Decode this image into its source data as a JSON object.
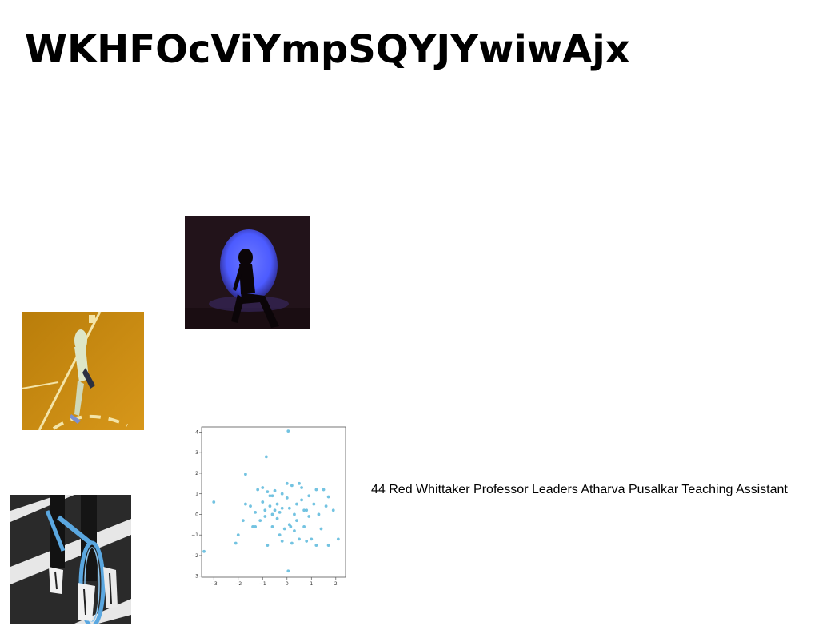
{
  "title": "WKHFOcViYmpSQYJYwiwAjx",
  "caption": "44 Red Whittaker Professor Leaders Atharva Pusalkar Teaching Assistant",
  "images": [
    {
      "name": "silhouette-spotlight-photo",
      "colors": {
        "background": "#22131a",
        "spot": "#4c5bff",
        "figure": "#0b0508"
      }
    },
    {
      "name": "runner-court-photo",
      "colors": {
        "floor": "#c88a10",
        "line": "#f3e4a8",
        "figure": "#dde6c8"
      }
    },
    {
      "name": "bicycle-crosswalk-photo",
      "colors": {
        "road": "#2a2a2a",
        "stripe": "#e7e7e7",
        "bike": "#5aa7e0"
      }
    }
  ],
  "chart_data": {
    "type": "scatter",
    "xlim": [
      -3.5,
      2.4
    ],
    "ylim": [
      -3.05,
      4.25
    ],
    "xticks": [
      "−3",
      "−2",
      "−1",
      "0",
      "1",
      "2"
    ],
    "yticks": [
      "−3",
      "−2",
      "−1",
      "0",
      "1",
      "2",
      "3",
      "4"
    ],
    "grid": false,
    "point_color": "#5ab8dc",
    "points": [
      [
        0.05,
        4.05
      ],
      [
        -0.85,
        2.8
      ],
      [
        -1.7,
        1.95
      ],
      [
        -3.0,
        0.6
      ],
      [
        -3.4,
        -1.8
      ],
      [
        -2.1,
        -1.4
      ],
      [
        -2.0,
        -1.0
      ],
      [
        -1.8,
        -0.3
      ],
      [
        -1.7,
        0.5
      ],
      [
        -1.5,
        0.4
      ],
      [
        -1.4,
        -0.6
      ],
      [
        -1.3,
        0.1
      ],
      [
        -1.2,
        1.2
      ],
      [
        -1.1,
        -0.3
      ],
      [
        -1.0,
        0.6
      ],
      [
        -1.0,
        1.3
      ],
      [
        -0.9,
        0.2
      ],
      [
        -0.9,
        -0.1
      ],
      [
        -0.8,
        1.1
      ],
      [
        -0.8,
        -1.5
      ],
      [
        -0.7,
        0.4
      ],
      [
        -0.7,
        0.9
      ],
      [
        -0.6,
        -0.6
      ],
      [
        -0.6,
        0.0
      ],
      [
        -0.5,
        0.2
      ],
      [
        -0.5,
        1.15
      ],
      [
        -0.4,
        -0.2
      ],
      [
        -0.4,
        0.5
      ],
      [
        -0.3,
        0.1
      ],
      [
        -0.3,
        -1.0
      ],
      [
        -0.2,
        -1.3
      ],
      [
        -0.2,
        1.0
      ],
      [
        -0.1,
        -0.7
      ],
      [
        0.0,
        1.5
      ],
      [
        0.0,
        0.8
      ],
      [
        0.05,
        -2.75
      ],
      [
        0.1,
        -0.5
      ],
      [
        0.1,
        0.3
      ],
      [
        0.2,
        -1.4
      ],
      [
        0.2,
        1.4
      ],
      [
        0.3,
        -0.8
      ],
      [
        0.3,
        0.0
      ],
      [
        0.4,
        0.5
      ],
      [
        0.4,
        -0.3
      ],
      [
        0.5,
        1.5
      ],
      [
        0.5,
        -1.2
      ],
      [
        0.6,
        0.7
      ],
      [
        0.6,
        1.3
      ],
      [
        0.7,
        0.2
      ],
      [
        0.7,
        -0.6
      ],
      [
        0.8,
        0.2
      ],
      [
        0.8,
        -1.3
      ],
      [
        0.9,
        -0.1
      ],
      [
        0.9,
        0.9
      ],
      [
        1.0,
        -1.2
      ],
      [
        1.1,
        0.5
      ],
      [
        1.2,
        1.2
      ],
      [
        1.2,
        -1.5
      ],
      [
        1.3,
        0.0
      ],
      [
        1.4,
        -0.7
      ],
      [
        1.5,
        1.2
      ],
      [
        1.6,
        0.4
      ],
      [
        1.7,
        -1.5
      ],
      [
        1.7,
        0.85
      ],
      [
        1.9,
        0.2
      ],
      [
        2.1,
        -1.2
      ],
      [
        -1.3,
        -0.6
      ],
      [
        -0.6,
        0.9
      ],
      [
        0.15,
        -0.6
      ],
      [
        -0.2,
        0.3
      ]
    ]
  }
}
